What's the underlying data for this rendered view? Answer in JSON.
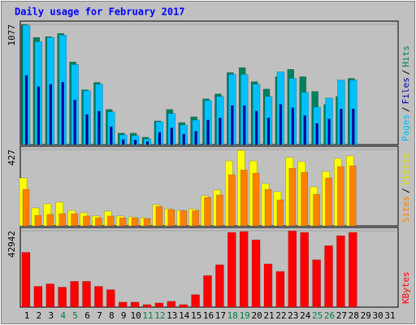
{
  "chart_data": [
    {
      "type": "bar",
      "title": "Daily usage for February 2017",
      "legend_separator": "/",
      "ylim": [
        0,
        1077
      ],
      "yticks": [
        1077
      ],
      "series": [
        {
          "name": "Hits",
          "color": "#00805c",
          "values": [
            1077,
            960,
            967,
            996,
            740,
            491,
            557,
            315,
            103,
            103,
            66,
            212,
            315,
            198,
            249,
            410,
            454,
            645,
            689,
            564,
            498,
            608,
            674,
            608,
            476,
            359,
            432,
            593,
            null,
            null,
            null
          ]
        },
        {
          "name": "Files",
          "color": "#0000a0",
          "values": [
            620,
            520,
            540,
            560,
            400,
            270,
            300,
            160,
            45,
            42,
            28,
            110,
            150,
            95,
            120,
            220,
            240,
            350,
            350,
            300,
            240,
            360,
            330,
            260,
            190,
            230,
            320,
            320,
            null,
            null,
            null
          ]
        },
        {
          "name": "Pages",
          "color": "#00c0ff",
          "values": [
            1070,
            923,
            960,
            982,
            718,
            484,
            542,
            293,
            88,
            81,
            51,
            205,
            278,
            176,
            220,
            396,
            432,
            630,
            630,
            542,
            432,
            652,
            593,
            469,
            337,
            418,
            579,
            579,
            null,
            null,
            null
          ]
        }
      ]
    },
    {
      "type": "bar",
      "legend_separator": "/",
      "ylim": [
        0,
        427
      ],
      "yticks": [
        427
      ],
      "series": [
        {
          "name": "Visits",
          "color": "#ffff00",
          "values": [
            268,
            100,
            123,
            132,
            86,
            73,
            55,
            82,
            55,
            50,
            45,
            118,
            95,
            86,
            95,
            168,
            200,
            363,
            422,
            363,
            236,
            191,
            382,
            359,
            218,
            304,
            377,
            391,
            null,
            null,
            null
          ]
        },
        {
          "name": "Sites",
          "color": "#ff8000",
          "values": [
            204,
            59,
            64,
            68,
            68,
            55,
            45,
            55,
            45,
            45,
            41,
            109,
            91,
            86,
            86,
            159,
            173,
            286,
            313,
            295,
            204,
            145,
            322,
            300,
            177,
            268,
            332,
            336,
            null,
            null,
            null
          ]
        }
      ]
    },
    {
      "type": "bar",
      "ylim": [
        0,
        42942
      ],
      "yticks": [
        42942
      ],
      "categories": [
        "1",
        "2",
        "3",
        "4",
        "5",
        "6",
        "7",
        "8",
        "9",
        "10",
        "11",
        "12",
        "13",
        "14",
        "15",
        "16",
        "17",
        "18",
        "19",
        "20",
        "21",
        "22",
        "23",
        "24",
        "25",
        "26",
        "27",
        "28",
        "29",
        "30",
        "31"
      ],
      "highlight_categories": [
        "4",
        "5",
        "11",
        "12",
        "18",
        "19",
        "25",
        "26"
      ],
      "highlight_color": "#008040",
      "category_color": "#000000",
      "series": [
        {
          "name": "KBytes",
          "color": "#ff0000",
          "values": [
            30806,
            11669,
            13069,
            11202,
            14470,
            14470,
            11669,
            9802,
            2800,
            2800,
            1400,
            2334,
            3267,
            1400,
            7001,
            17737,
            23805,
            42000,
            42500,
            37808,
            24272,
            20071,
            42942,
            42009,
            26605,
            34541,
            40142,
            42009,
            null,
            null,
            null
          ]
        }
      ]
    }
  ]
}
